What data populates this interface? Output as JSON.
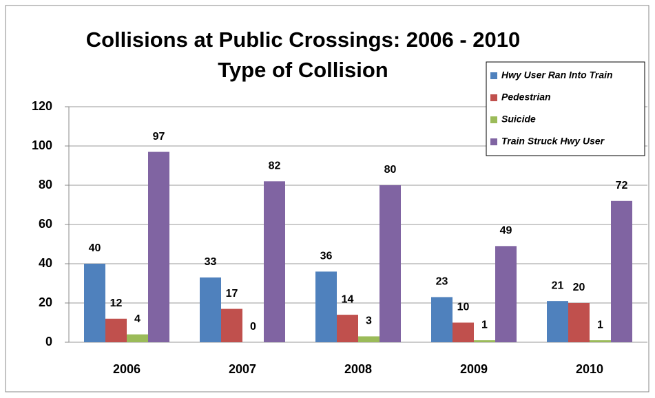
{
  "chart_data": {
    "type": "bar",
    "title": "Collisions at Public Crossings:  2006 - 2010",
    "subtitle": "Type of Collision",
    "categories": [
      "2006",
      "2007",
      "2008",
      "2009",
      "2010"
    ],
    "series": [
      {
        "name": "Hwy User Ran Into Train",
        "color": "#4f81bd",
        "values": [
          40,
          33,
          36,
          23,
          21
        ]
      },
      {
        "name": "Pedestrian",
        "color": "#c0504d",
        "values": [
          12,
          17,
          14,
          10,
          20
        ]
      },
      {
        "name": "Suicide",
        "color": "#9bbb59",
        "values": [
          4,
          0,
          3,
          1,
          1
        ]
      },
      {
        "name": "Train Struck Hwy User",
        "color": "#8064a2",
        "values": [
          97,
          82,
          80,
          49,
          72
        ]
      }
    ],
    "ylim": [
      0,
      120
    ],
    "yticks": [
      0,
      20,
      40,
      60,
      80,
      100,
      120
    ],
    "grid": true,
    "legend": "top-right"
  }
}
